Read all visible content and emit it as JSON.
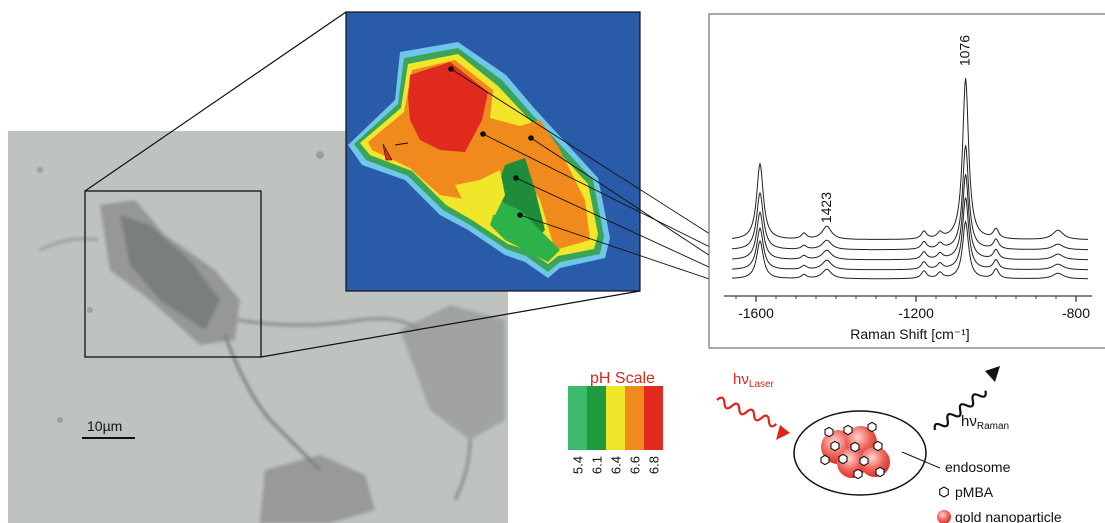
{
  "micrograph": {
    "scale_bar_label": "10µm"
  },
  "ph_map": {
    "colors": [
      "#1e8c3a",
      "#2db24a",
      "#f4ea1e",
      "#f08a1c",
      "#e02a1e",
      "#2a5ba8",
      "#6ec6e8"
    ]
  },
  "raman_chart": {
    "chart_data": {
      "type": "line",
      "title": "",
      "xlabel": "Raman Shift [cm⁻¹]",
      "ylabel": "",
      "xlim": [
        -1680,
        -760
      ],
      "x_ticks": [
        "-1600",
        "-1200",
        "-800"
      ],
      "x_tick_values": [
        -1600,
        -1200,
        -800
      ],
      "peak_annotations": [
        {
          "label": "1423",
          "x": -1423
        },
        {
          "label": "1076",
          "x": -1076
        }
      ],
      "peaks": [
        {
          "x": -1590,
          "width": 10
        },
        {
          "x": -1480,
          "width": 8
        },
        {
          "x": -1423,
          "width": 14
        },
        {
          "x": -1180,
          "width": 8
        },
        {
          "x": -1140,
          "width": 8
        },
        {
          "x": -1076,
          "width": 9
        },
        {
          "x": -1000,
          "width": 8
        },
        {
          "x": -845,
          "width": 16
        }
      ],
      "series": [
        {
          "heights": [
            0.4,
            0.03,
            0.07,
            0.04,
            0.03,
            0.85,
            0.05,
            0.05
          ]
        },
        {
          "heights": [
            0.3,
            0.02,
            0.05,
            0.04,
            0.03,
            0.55,
            0.05,
            0.03
          ]
        },
        {
          "heights": [
            0.25,
            0.02,
            0.05,
            0.04,
            0.03,
            0.45,
            0.05,
            0.03
          ]
        },
        {
          "heights": [
            0.22,
            0.02,
            0.05,
            0.04,
            0.03,
            0.38,
            0.05,
            0.03
          ]
        },
        {
          "heights": [
            0.2,
            0.02,
            0.05,
            0.04,
            0.03,
            0.3,
            0.05,
            0.03
          ]
        }
      ]
    }
  },
  "ph_scale": {
    "title": "pH Scale",
    "ticks": [
      "5.4",
      "6.1",
      "6.4",
      "6.6",
      "6.8"
    ],
    "colors": [
      "#3cb96a",
      "#1f9a3e",
      "#f2e62a",
      "#f08a1c",
      "#e32a1e"
    ]
  },
  "schematic": {
    "laser_label": "hν",
    "laser_sub": "Laser",
    "raman_label": "hν",
    "raman_sub": "Raman",
    "endosome_label": "endosome",
    "pmba_label": "pMBA",
    "gold_label": "gold nanoparticle",
    "laser_color": "#e0241c"
  }
}
